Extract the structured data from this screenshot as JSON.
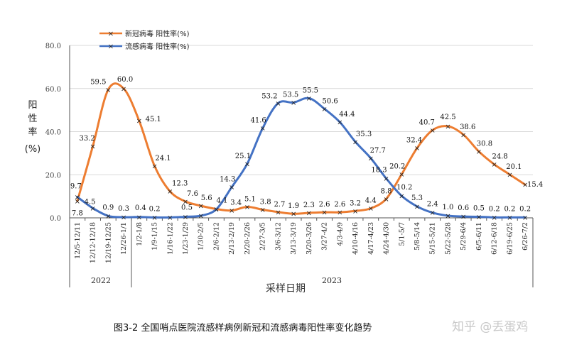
{
  "chart_data": {
    "type": "line",
    "categories": [
      "12/5-12/11",
      "12/12-12/18",
      "12/19-12/25",
      "12/26-1/1",
      "1/2-1/8",
      "1/9-1/15",
      "1/16-1/22",
      "1/23-1/29",
      "1/30-2/5",
      "2/6-2/12",
      "2/13-2/19",
      "2/20-2/26",
      "2/27-3/5",
      "3/6-3/12",
      "3/13-3/19",
      "3/20-3/26",
      "3/27-4/2",
      "4/3-4/9",
      "4/10-4/16",
      "4/17-4/23",
      "4/24-4/30",
      "5/1-5/7",
      "5/8-5/14",
      "5/15-5/21",
      "5/22-5/28",
      "5/29-6/4",
      "6/5-6/11",
      "6/12-6/18",
      "6/19-6/25",
      "6/26-7/2"
    ],
    "series": [
      {
        "name": "新冠病毒 阳性率(%)",
        "color": "#ed7d31",
        "values": [
          7.8,
          33.2,
          59.5,
          60.0,
          45.1,
          24.1,
          12.3,
          7.6,
          5.6,
          4.1,
          3.4,
          5.1,
          3.8,
          2.7,
          1.9,
          2.3,
          2.6,
          2.6,
          3.2,
          4.4,
          8.8,
          20.2,
          32.4,
          40.7,
          42.5,
          38.6,
          30.8,
          24.8,
          20.1,
          15.4
        ]
      },
      {
        "name": "流感病毒 阳性率(%)",
        "color": "#4472c4",
        "values": [
          9.7,
          4.5,
          0.9,
          0.3,
          0.4,
          0.2,
          0.2,
          0.5,
          1.0,
          4.0,
          14.3,
          25.1,
          41.6,
          53.2,
          53.5,
          55.5,
          50.6,
          44.4,
          35.3,
          27.7,
          18.3,
          10.2,
          5.3,
          2.4,
          1.0,
          0.6,
          0.5,
          0.2,
          0.2,
          0.2
        ]
      }
    ],
    "y_ticks": [
      "0.0",
      "20.0",
      "40.0",
      "60.0",
      "80.0"
    ],
    "ylim": [
      0,
      80
    ],
    "ylabel": [
      "阳",
      "性",
      "率",
      "(%)"
    ],
    "xlabel": "采样日期",
    "years": [
      "2022",
      "2023"
    ],
    "covid_labels": [
      "7.8",
      "33.2",
      "59.5",
      "60.0",
      "45.1",
      "24.1",
      "12.3",
      "7.6",
      "5.6",
      "4.1",
      "3.4",
      "5.1",
      "3.8",
      "2.7",
      "1.9",
      "2.3",
      "2.6",
      "2.6",
      "3.2",
      "4.4",
      "8.8",
      "20.2",
      "32.4",
      "40.7",
      "42.5",
      "38.6",
      "30.8",
      "24.8",
      "20.1",
      "15.4"
    ],
    "flu_labels": [
      "9.7",
      "4.5",
      "0.9",
      "0.3",
      "0.4",
      "0.2",
      "",
      "0.5",
      "",
      "",
      "14.3",
      "25.1",
      "41.6",
      "53.2",
      "53.5",
      "55.5",
      "50.6",
      "44.4",
      "35.3",
      "27.7",
      "18.3",
      "10.2",
      "5.3",
      "2.4",
      "1.0",
      "0.6",
      "0.5",
      "0.2",
      "0.2",
      "0.2"
    ],
    "grid": true,
    "legend_position": "top-left"
  },
  "caption": "图3-2 全国哨点医院流感样病例新冠和流感病毒阳性率变化趋势",
  "watermark": "知乎 @丢蛋鸡"
}
